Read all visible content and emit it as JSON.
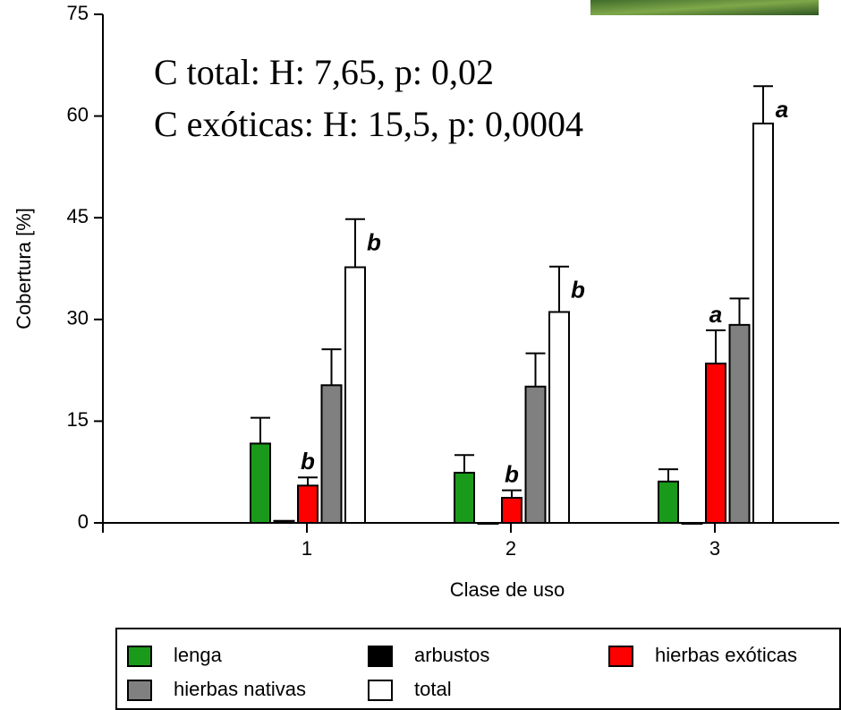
{
  "chart_data": {
    "type": "bar",
    "annotations": [
      "C total: H: 7,65, p: 0,02",
      "C exóticas: H: 15,5, p: 0,0004"
    ],
    "xlabel": "Clase de uso",
    "ylabel": "Cobertura [%]",
    "categories": [
      "1",
      "2",
      "3"
    ],
    "series": [
      {
        "name": "lenga",
        "color": "#1a9a1a",
        "values": [
          11.7,
          7.4,
          6.1
        ],
        "errors": [
          3.8,
          2.6,
          1.8
        ]
      },
      {
        "name": "arbustos",
        "color": "#000000",
        "values": [
          0.3,
          0,
          0
        ],
        "errors": [
          0,
          0,
          0
        ]
      },
      {
        "name": "hierbas exóticas",
        "color": "#ff0000",
        "values": [
          5.5,
          3.7,
          23.5
        ],
        "errors": [
          1.2,
          1.1,
          4.9
        ],
        "labels": [
          "b",
          "b",
          "a"
        ]
      },
      {
        "name": "hierbas nativas",
        "color": "#808080",
        "values": [
          20.3,
          20.1,
          29.2
        ],
        "errors": [
          5.3,
          4.9,
          3.9
        ]
      },
      {
        "name": "total",
        "color": "#ffffff",
        "values": [
          37.7,
          31.1,
          58.9
        ],
        "errors": [
          7.1,
          6.7,
          5.5
        ],
        "labels": [
          "b",
          "b",
          "a"
        ]
      }
    ],
    "ylim": [
      0,
      75
    ],
    "yticks": [
      0,
      15,
      30,
      45,
      60,
      75
    ],
    "legend": "bottom"
  }
}
